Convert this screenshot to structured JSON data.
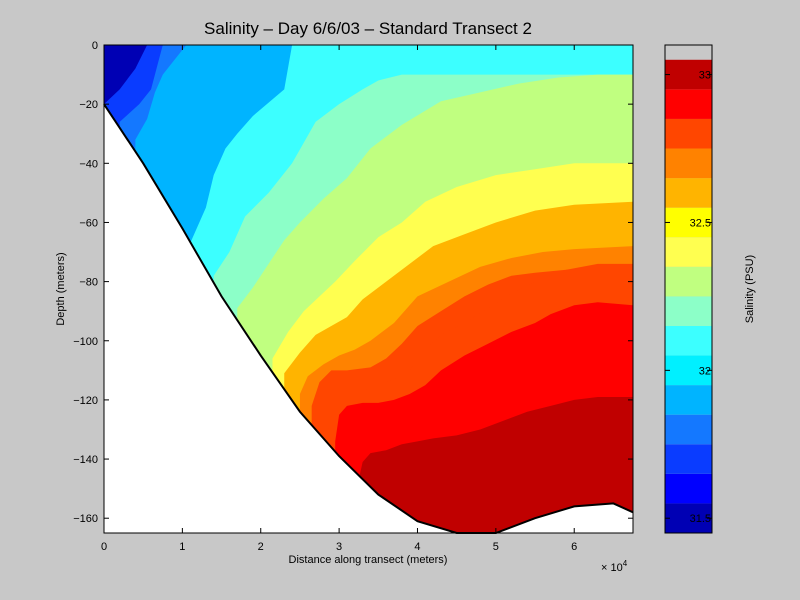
{
  "chart_data": {
    "type": "heatmap",
    "subtype": "filled-contour",
    "title": "Salinity – Day 6/6/03 – Standard Transect 2",
    "xlabel": "Distance along transect (meters)",
    "ylabel": "Depth (meters)",
    "x_multiplier_base": "× 10",
    "x_multiplier_exponent": "4",
    "xlim": [
      0,
      67500
    ],
    "ylim": [
      -165,
      0
    ],
    "x_ticks": [
      0,
      10000,
      20000,
      30000,
      40000,
      50000,
      60000
    ],
    "x_tick_labels": [
      "0",
      "1",
      "2",
      "3",
      "4",
      "5",
      "6"
    ],
    "y_ticks": [
      0,
      -20,
      -40,
      -60,
      -80,
      -100,
      -120,
      -140,
      -160
    ],
    "y_tick_labels": [
      "0",
      "−20",
      "−40",
      "−60",
      "−80",
      "−100",
      "−120",
      "−140",
      "−160"
    ],
    "colorbar": {
      "label": "Salinity (PSU)",
      "range": [
        31.45,
        33.1
      ],
      "ticks": [
        31.5,
        32,
        32.5,
        33
      ],
      "tick_labels": [
        "31.5",
        "32",
        "32.5",
        "33"
      ],
      "level_step": 0.1,
      "colors": [
        "#0000b4",
        "#0000ff",
        "#0a3cff",
        "#1478ff",
        "#00b4ff",
        "#00f0ff",
        "#3cffff",
        "#8cffc8",
        "#c0ff80",
        "#ffff50",
        "#ffff00",
        "#ffb400",
        "#ff8200",
        "#ff4600",
        "#ff0000",
        "#c00000"
      ]
    },
    "seafloor_profile": {
      "x": [
        0,
        5000,
        10000,
        15000,
        20000,
        25000,
        30000,
        35000,
        40000,
        45000,
        50000,
        55000,
        60000,
        65000,
        67500
      ],
      "depth": [
        -20,
        -40,
        -62,
        -85,
        -105,
        -124,
        -139,
        -152,
        -161,
        -165,
        -165,
        -160,
        -156,
        -155,
        -158
      ]
    },
    "contour_lines": [
      {
        "level": 31.6,
        "x": [
          0,
          2000,
          4000,
          5500
        ],
        "depth": [
          -20,
          -15,
          -8,
          0
        ]
      },
      {
        "level": 31.7,
        "x": [
          2000,
          4500,
          6000,
          7000,
          7500
        ],
        "depth": [
          -26,
          -20,
          -15,
          -5,
          0
        ]
      },
      {
        "level": 31.8,
        "x": [
          4000,
          5500,
          6500,
          7500,
          9000,
          10500
        ],
        "depth": [
          -32,
          -25,
          -16,
          -10,
          -5,
          0
        ]
      },
      {
        "level": 31.9,
        "x": [
          8500,
          9000,
          10000,
          11000,
          12000,
          14000,
          16000,
          17000,
          18000
        ],
        "depth": [
          -53,
          -45,
          -33,
          -23,
          -18,
          -15,
          -10,
          -7,
          0
        ]
      },
      {
        "level": 32.0,
        "x": [
          11000,
          13000,
          14000,
          15500,
          17000,
          19000,
          23000,
          24000
        ],
        "depth": [
          -67,
          -55,
          -44,
          -35,
          -30,
          -24,
          -15,
          0
        ]
      },
      {
        "level": 32.1,
        "x": [
          14000,
          16000,
          18000,
          21000,
          24000,
          27000,
          30000,
          33000,
          35000,
          38000
        ],
        "depth": [
          -78,
          -70,
          -58,
          -50,
          -40,
          -26,
          -20,
          -15,
          -12,
          -10
        ]
      },
      {
        "level": 32.2,
        "x": [
          17000,
          19000,
          21000,
          23000,
          25000,
          28000,
          31000,
          34000,
          38000,
          43000,
          48000,
          53000,
          58000,
          63000,
          67500
        ],
        "depth": [
          -89,
          -82,
          -74,
          -66,
          -60,
          -52,
          -45,
          -35,
          -27,
          -19,
          -16,
          -13,
          -11,
          -10,
          -10
        ]
      },
      {
        "level": 32.3,
        "x": [
          19500,
          22000,
          24000,
          26000,
          28000,
          30000,
          32000,
          35000,
          38000,
          42000,
          46000,
          52000,
          58000,
          63000,
          67500
        ],
        "depth": [
          -98,
          -92,
          -84,
          -76,
          -69,
          -63,
          -55,
          -50,
          -45,
          -40,
          -35,
          -30,
          -28,
          -26,
          -25
        ]
      },
      {
        "level": 32.4,
        "x": [
          21500,
          23500,
          25500,
          27500,
          29500,
          32000,
          35000,
          38000,
          41000,
          45000,
          50000,
          55000,
          60000,
          67500
        ],
        "depth": [
          -106,
          -97,
          -90,
          -85,
          -80,
          -73,
          -65,
          -60,
          -53,
          -48,
          -44,
          -42,
          -40,
          -40
        ]
      },
      {
        "level": 32.5,
        "x": [
          23000,
          25000,
          27000,
          29000,
          31000,
          33000,
          36000,
          39000,
          42000,
          46000,
          50000,
          55000,
          60000,
          67500
        ],
        "depth": [
          -111,
          -104,
          -98,
          -95,
          -92,
          -86,
          -80,
          -74,
          -68,
          -64,
          -60,
          -56,
          -54,
          -53
        ]
      },
      {
        "level": 32.6,
        "x": [
          25000,
          26000,
          28000,
          30000,
          32000,
          34000,
          37000,
          40000,
          44000,
          48000,
          52000,
          56000,
          60000,
          67500
        ],
        "depth": [
          -118,
          -112,
          -108,
          -105,
          -103,
          -100,
          -94,
          -85,
          -80,
          -75,
          -72,
          -70,
          -69,
          -68
        ]
      },
      {
        "level": 32.7,
        "x": [
          26500,
          27500,
          29000,
          31000,
          34000,
          36000,
          38000,
          40000,
          43000,
          46000,
          49000,
          52000,
          55000,
          59000,
          63000,
          67500
        ],
        "depth": [
          -122,
          -114,
          -110,
          -110,
          -109,
          -106,
          -101,
          -95,
          -90,
          -85,
          -81,
          -78,
          -77,
          -76,
          -78,
          -80
        ]
      },
      {
        "level": 32.8,
        "x": [
          28500,
          29500,
          31000,
          33000,
          35000,
          37000,
          39000,
          41000,
          43000,
          46000,
          49000,
          52000,
          55000,
          59000,
          63000,
          67500
        ],
        "depth": [
          -131,
          -121,
          -117,
          -117,
          -115,
          -113,
          -110,
          -103,
          -98,
          -94,
          -89,
          -84,
          -80,
          -76,
          -74,
          -74
        ]
      },
      {
        "level": 32.9,
        "x": [
          29500,
          30000,
          31000,
          33000,
          35000,
          37000,
          39000,
          41000,
          43000,
          46000,
          49000,
          52000,
          55000,
          57000,
          60000,
          63000,
          67500
        ],
        "depth": [
          -134,
          -125,
          -122,
          -121,
          -121,
          -120,
          -118,
          -115,
          -110,
          -105,
          -101,
          -97,
          -94,
          -91,
          -88,
          -87,
          -88
        ]
      },
      {
        "level": 33.0,
        "x": [
          32500,
          33000,
          34000,
          36000,
          38000,
          40000,
          42000,
          45000,
          48000,
          51000,
          54000,
          57000,
          60000,
          63000,
          67500
        ],
        "depth": [
          -147,
          -141,
          -138,
          -137,
          -135,
          -134,
          -133,
          -132,
          -130,
          -127,
          -124,
          -122,
          -120,
          -119,
          -119
        ]
      },
      {
        "level": 33.1,
        "x": [
          38000,
          39000,
          41000,
          44000,
          47000,
          50000,
          53000,
          56000,
          59000,
          62000,
          65000,
          67500
        ],
        "depth": [
          -154,
          -151,
          -150,
          -150,
          -148,
          -146,
          -144,
          -142,
          -140,
          -138,
          -134,
          -129
        ]
      }
    ]
  }
}
